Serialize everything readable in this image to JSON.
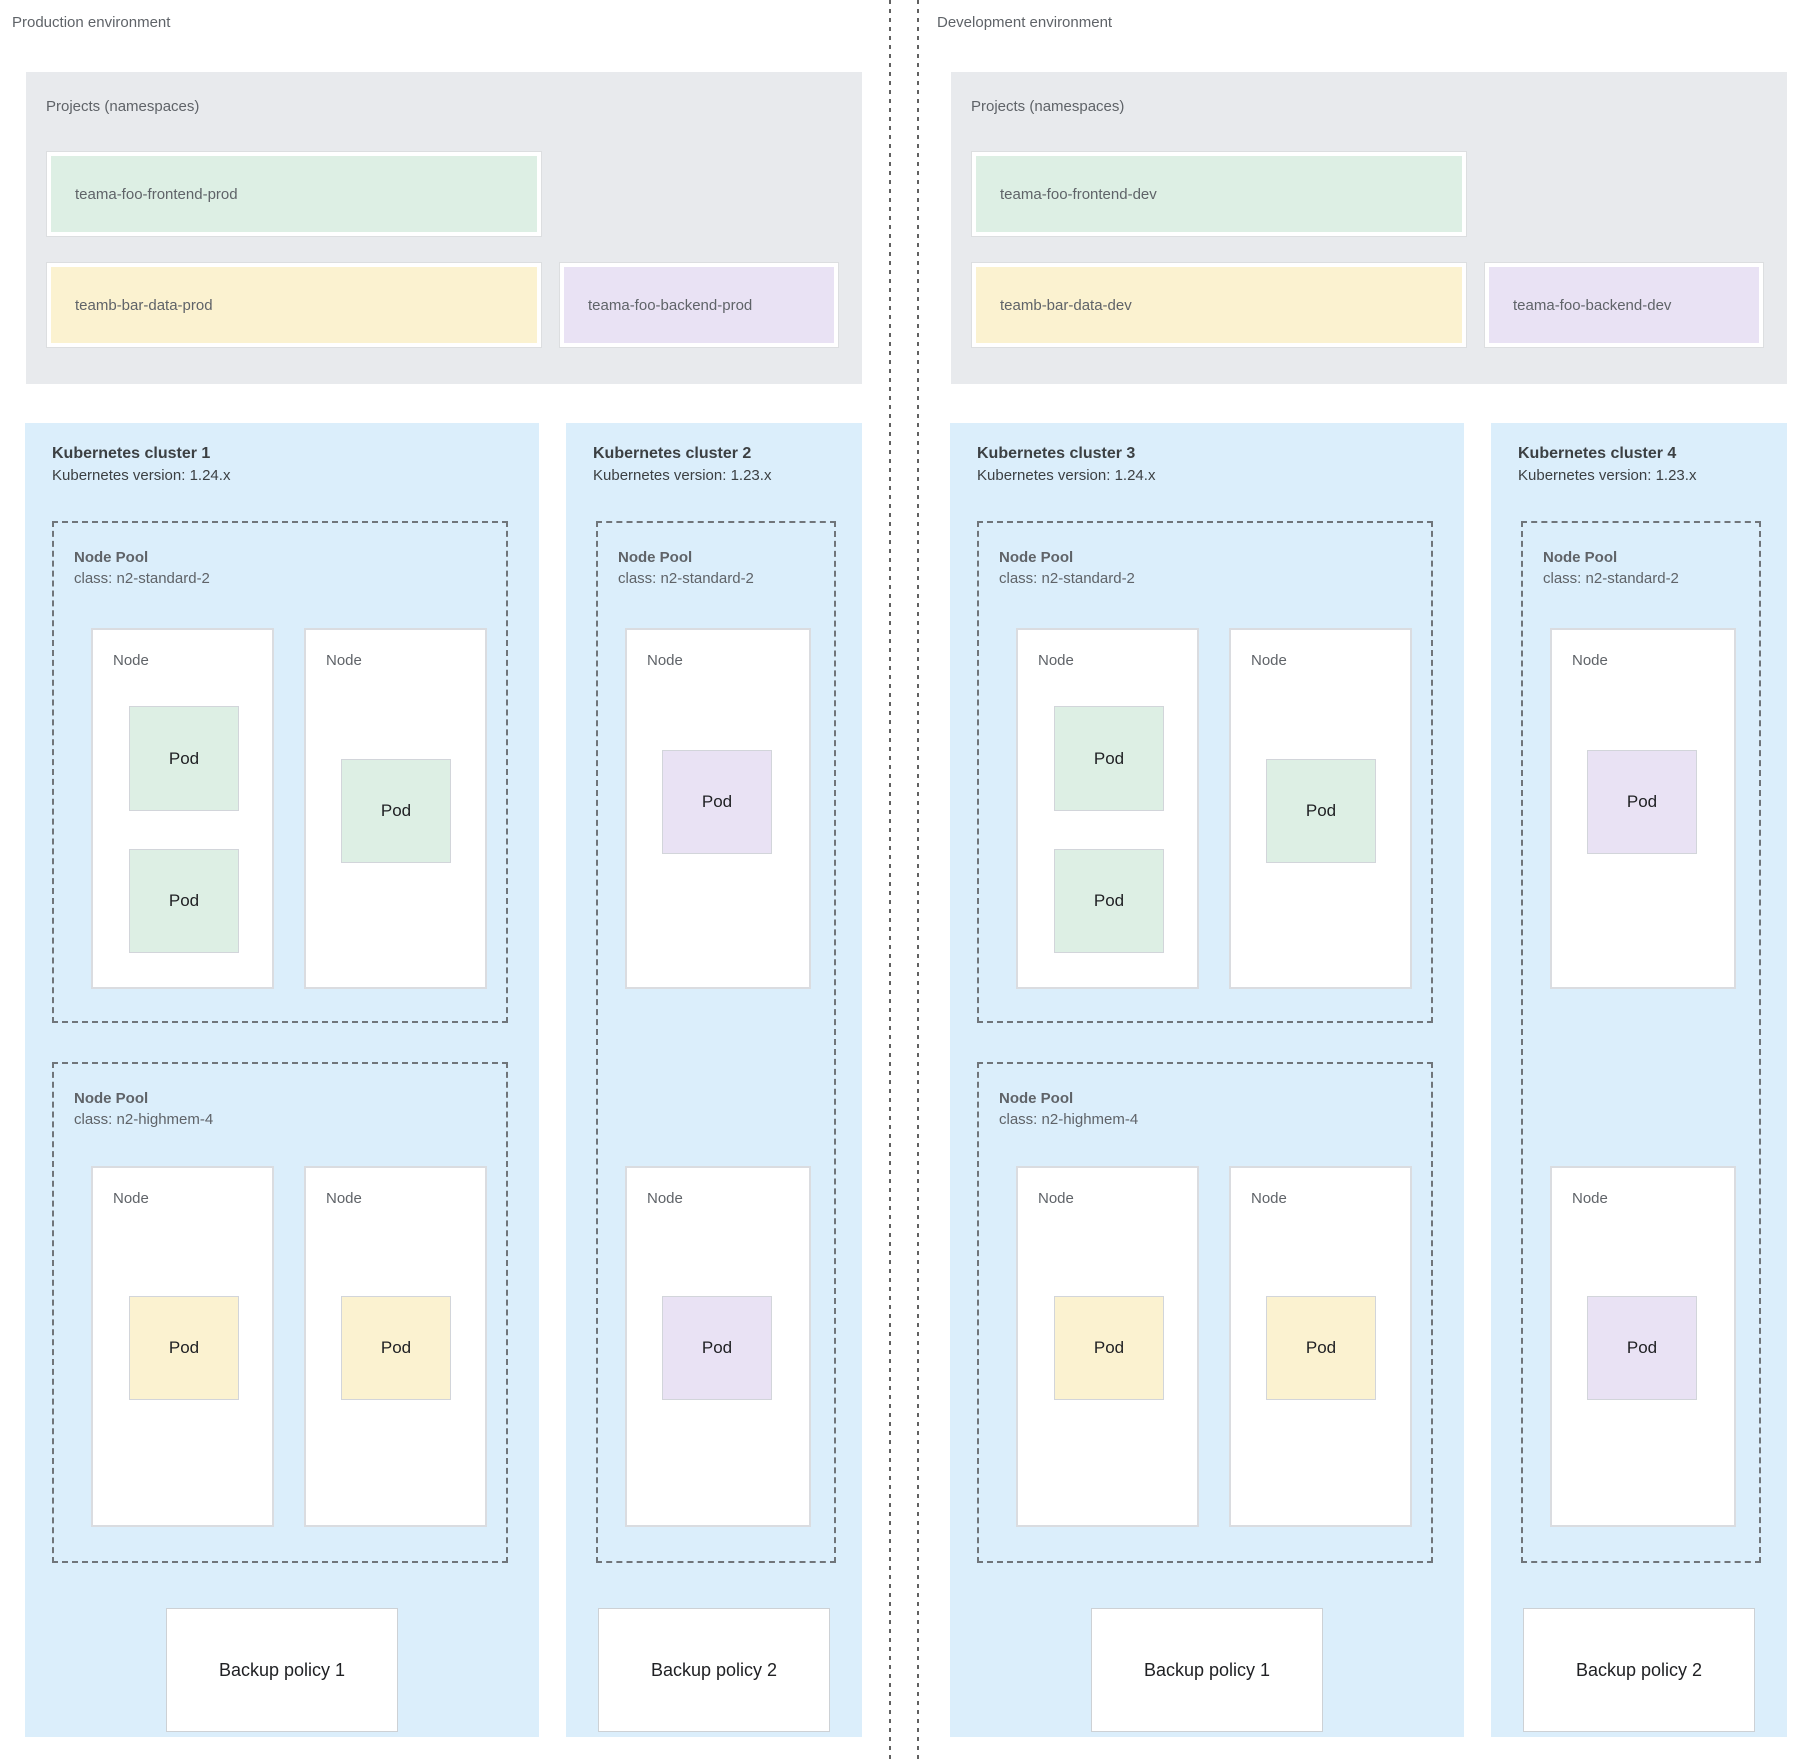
{
  "palette": {
    "cluster_background": "#dbeefb",
    "projects_background": "#e8eaed",
    "namespace_green": "#ddefe4",
    "namespace_yellow": "#fbf2d0",
    "namespace_purple": "#e9e2f4"
  },
  "environments": [
    {
      "label": "Production environment",
      "projects": {
        "title": "Projects (namespaces)",
        "namespaces": [
          {
            "name": "teama-foo-frontend-prod",
            "color": "green"
          },
          {
            "name": "teamb-bar-data-prod",
            "color": "yellow"
          },
          {
            "name": "teama-foo-backend-prod",
            "color": "purple"
          }
        ]
      },
      "clusters": [
        {
          "title": "Kubernetes cluster 1",
          "version": "Kubernetes version: 1.24.x",
          "node_pools": [
            {
              "label": "Node Pool",
              "machine_class": "class: n2-standard-2",
              "nodes": [
                {
                  "label": "Node",
                  "pods": [
                    {
                      "label": "Pod",
                      "color": "green"
                    },
                    {
                      "label": "Pod",
                      "color": "green"
                    }
                  ]
                },
                {
                  "label": "Node",
                  "pods": [
                    {
                      "label": "Pod",
                      "color": "green"
                    }
                  ]
                }
              ]
            },
            {
              "label": "Node Pool",
              "machine_class": "class: n2-highmem-4",
              "nodes": [
                {
                  "label": "Node",
                  "pods": [
                    {
                      "label": "Pod",
                      "color": "yellow"
                    }
                  ]
                },
                {
                  "label": "Node",
                  "pods": [
                    {
                      "label": "Pod",
                      "color": "yellow"
                    }
                  ]
                }
              ]
            }
          ],
          "backup_policy": "Backup policy 1"
        },
        {
          "title": "Kubernetes cluster 2",
          "version": "Kubernetes version: 1.23.x",
          "node_pools": [
            {
              "label": "Node Pool",
              "machine_class": "class: n2-standard-2",
              "nodes": [
                {
                  "label": "Node",
                  "pods": [
                    {
                      "label": "Pod",
                      "color": "purple"
                    }
                  ]
                },
                {
                  "label": "Node",
                  "pods": [
                    {
                      "label": "Pod",
                      "color": "purple"
                    }
                  ]
                }
              ]
            }
          ],
          "backup_policy": "Backup policy 2"
        }
      ]
    },
    {
      "label": "Development environment",
      "projects": {
        "title": "Projects (namespaces)",
        "namespaces": [
          {
            "name": "teama-foo-frontend-dev",
            "color": "green"
          },
          {
            "name": "teamb-bar-data-dev",
            "color": "yellow"
          },
          {
            "name": "teama-foo-backend-dev",
            "color": "purple"
          }
        ]
      },
      "clusters": [
        {
          "title": "Kubernetes cluster 3",
          "version": "Kubernetes version: 1.24.x",
          "node_pools": [
            {
              "label": "Node Pool",
              "machine_class": "class: n2-standard-2",
              "nodes": [
                {
                  "label": "Node",
                  "pods": [
                    {
                      "label": "Pod",
                      "color": "green"
                    },
                    {
                      "label": "Pod",
                      "color": "green"
                    }
                  ]
                },
                {
                  "label": "Node",
                  "pods": [
                    {
                      "label": "Pod",
                      "color": "green"
                    }
                  ]
                }
              ]
            },
            {
              "label": "Node Pool",
              "machine_class": "class: n2-highmem-4",
              "nodes": [
                {
                  "label": "Node",
                  "pods": [
                    {
                      "label": "Pod",
                      "color": "yellow"
                    }
                  ]
                },
                {
                  "label": "Node",
                  "pods": [
                    {
                      "label": "Pod",
                      "color": "yellow"
                    }
                  ]
                }
              ]
            }
          ],
          "backup_policy": "Backup policy 1"
        },
        {
          "title": "Kubernetes cluster 4",
          "version": "Kubernetes version: 1.23.x",
          "node_pools": [
            {
              "label": "Node Pool",
              "machine_class": "class: n2-standard-2",
              "nodes": [
                {
                  "label": "Node",
                  "pods": [
                    {
                      "label": "Pod",
                      "color": "purple"
                    }
                  ]
                },
                {
                  "label": "Node",
                  "pods": [
                    {
                      "label": "Pod",
                      "color": "purple"
                    }
                  ]
                }
              ]
            }
          ],
          "backup_policy": "Backup policy 2"
        }
      ]
    }
  ]
}
